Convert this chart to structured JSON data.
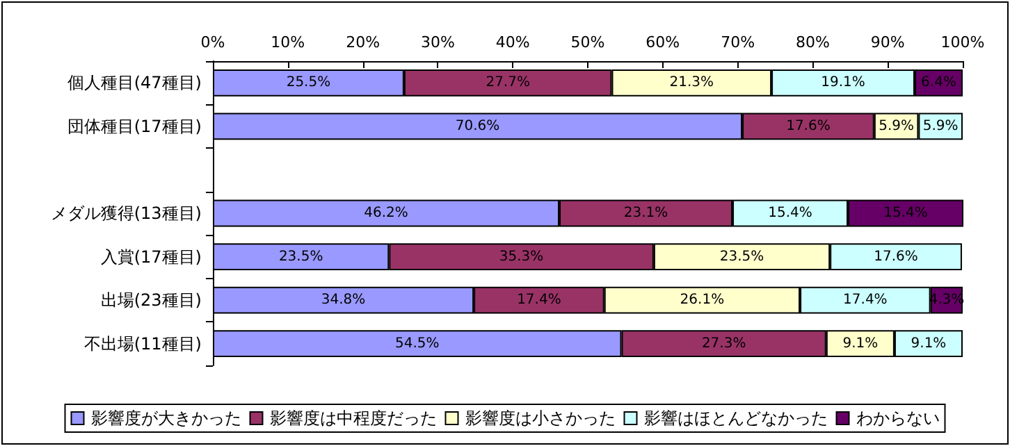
{
  "chart_data": {
    "type": "bar",
    "orientation": "horizontal",
    "stacked": true,
    "legend": "bottom",
    "grid": false,
    "categories": [
      "個人種目(47種目)",
      "団体種目(17種目)",
      null,
      "メダル獲得(13種目)",
      "入賞(17種目)",
      "出場(23種目)",
      "不出場(11種目)"
    ],
    "xlim": [
      0,
      100
    ],
    "xticks": [
      {
        "value": 0,
        "label": "0%"
      },
      {
        "value": 10,
        "label": "10%"
      },
      {
        "value": 20,
        "label": "20%"
      },
      {
        "value": 30,
        "label": "30%"
      },
      {
        "value": 40,
        "label": "40%"
      },
      {
        "value": 50,
        "label": "50%"
      },
      {
        "value": 60,
        "label": "60%"
      },
      {
        "value": 70,
        "label": "70%"
      },
      {
        "value": 80,
        "label": "80%"
      },
      {
        "value": 90,
        "label": "90%"
      },
      {
        "value": 100,
        "label": "100%"
      }
    ],
    "series": [
      {
        "name": "影響度が大きかった",
        "color": "#9999ff",
        "values": [
          25.5,
          70.6,
          null,
          46.2,
          23.5,
          34.8,
          54.5
        ],
        "value_labels": [
          "25.5%",
          "70.6%",
          null,
          "46.2%",
          "23.5%",
          "34.8%",
          "54.5%"
        ]
      },
      {
        "name": "影響度は中程度だった",
        "color": "#993366",
        "values": [
          27.7,
          17.6,
          null,
          23.1,
          35.3,
          17.4,
          27.3
        ],
        "value_labels": [
          "27.7%",
          "17.6%",
          null,
          "23.1%",
          "35.3%",
          "17.4%",
          "27.3%"
        ]
      },
      {
        "name": "影響度は小さかった",
        "color": "#ffffcc",
        "values": [
          21.3,
          5.9,
          null,
          null,
          23.5,
          26.1,
          9.1
        ],
        "value_labels": [
          "21.3%",
          "5.9%",
          null,
          null,
          "23.5%",
          "26.1%",
          "9.1%"
        ]
      },
      {
        "name": "影響はほとんどなかった",
        "color": "#ccffff",
        "values": [
          19.1,
          5.9,
          null,
          15.4,
          17.6,
          17.4,
          9.1
        ],
        "value_labels": [
          "19.1%",
          "5.9%",
          null,
          "15.4%",
          "17.6%",
          "17.4%",
          "9.1%"
        ]
      },
      {
        "name": "わからない",
        "color": "#660066",
        "values": [
          6.4,
          null,
          null,
          15.4,
          null,
          4.3,
          null
        ],
        "value_labels": [
          "6.4%",
          null,
          null,
          "15.4%",
          null,
          "4.3%",
          null
        ]
      }
    ]
  }
}
